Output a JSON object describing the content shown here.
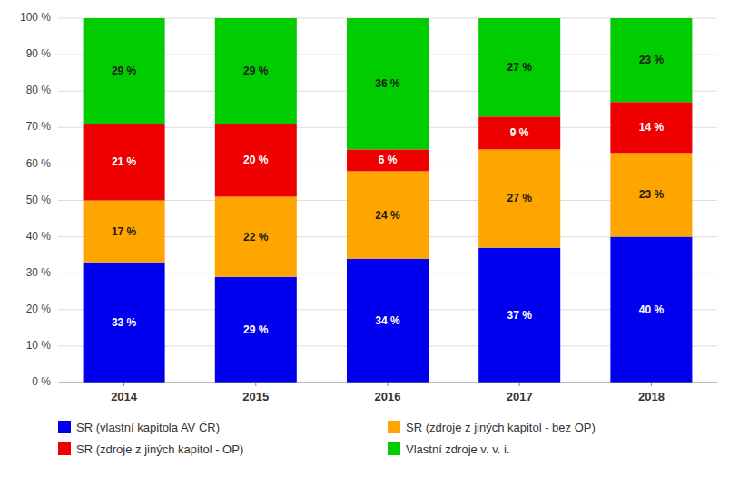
{
  "chart_data": {
    "type": "bar",
    "stacked": true,
    "categories": [
      "2014",
      "2015",
      "2016",
      "2017",
      "2018"
    ],
    "series": [
      {
        "name": "SR (vlastní kapitola AV ČR)",
        "color": "#0000EE",
        "values": [
          33,
          29,
          34,
          37,
          40
        ],
        "value_labels": [
          "33 %",
          "29 %",
          "34 %",
          "37 %",
          "40 %"
        ]
      },
      {
        "name": "SR (zdroje z jiných kapitol - bez OP)",
        "color": "#FFA500",
        "values": [
          17,
          22,
          24,
          27,
          23
        ],
        "value_labels": [
          "17 %",
          "22 %",
          "24 %",
          "27 %",
          "23 %"
        ]
      },
      {
        "name": "SR (zdroje z jiných kapitol - OP)",
        "color": "#EE0000",
        "values": [
          21,
          20,
          6,
          9,
          14
        ],
        "value_labels": [
          "21 %",
          "20 %",
          "6 %",
          "9 %",
          "14 %"
        ]
      },
      {
        "name": "Vlastní zdroje v. v. i.",
        "color": "#00CC00",
        "values": [
          29,
          29,
          36,
          27,
          23
        ],
        "value_labels": [
          "29 %",
          "29 %",
          "36 %",
          "27 %",
          "23 %"
        ]
      }
    ],
    "ylim": [
      0,
      100
    ],
    "yticks": [
      {
        "value": 0,
        "label": "0 %"
      },
      {
        "value": 10,
        "label": "10 %"
      },
      {
        "value": 20,
        "label": "20 %"
      },
      {
        "value": 30,
        "label": "30 %"
      },
      {
        "value": 40,
        "label": "40 %"
      },
      {
        "value": 50,
        "label": "50 %"
      },
      {
        "value": 60,
        "label": "60 %"
      },
      {
        "value": 70,
        "label": "70 %"
      },
      {
        "value": 80,
        "label": "80 %"
      },
      {
        "value": 90,
        "label": "90 %"
      },
      {
        "value": 100,
        "label": "100 %"
      }
    ],
    "grid": true,
    "data_labels": true,
    "legend": "bottom"
  }
}
